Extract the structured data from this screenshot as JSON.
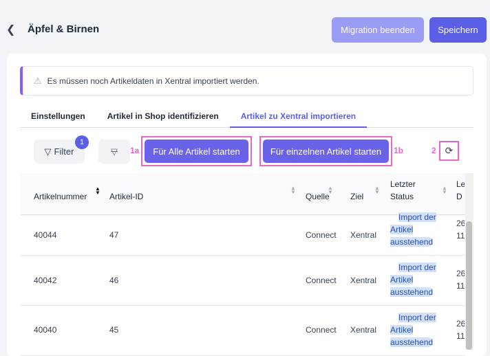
{
  "header": {
    "title": "Äpfel & Birnen",
    "end_migration": "Migration beenden",
    "save": "Speichern"
  },
  "alert": {
    "text": "Es müssen noch Artikeldaten in Xentral importiert werden."
  },
  "tabs": [
    {
      "label": "Einstellungen"
    },
    {
      "label": "Artikel in Shop identifizieren"
    },
    {
      "label": "Artikel zu Xentral importieren",
      "active": true
    }
  ],
  "toolbar": {
    "filter": "Filter",
    "filter_count": "1",
    "mark_1a": "1a",
    "start_all": "Für Alle Artikel starten",
    "start_single": "Für einzelnen Artikel starten",
    "mark_1b": "1b",
    "mark_2": "2"
  },
  "table": {
    "columns": [
      "Artikelnummer",
      "Artikel-ID",
      "Quelle",
      "Ziel",
      "Letzter",
      "Status",
      "Le",
      "D"
    ],
    "rows": [
      {
        "artikelnummer": "40044",
        "artikel_id": "47",
        "quelle": "Connect",
        "ziel": "Xentral",
        "status": "Import der Artikel ausstehend",
        "date1": "26",
        "date2": "11"
      },
      {
        "artikelnummer": "40042",
        "artikel_id": "46",
        "quelle": "Connect",
        "ziel": "Xentral",
        "status": "Import der Artikel ausstehend",
        "date1": "26",
        "date2": "11"
      },
      {
        "artikelnummer": "40040",
        "artikel_id": "45",
        "quelle": "Connect",
        "ziel": "Xentral",
        "status": "Import der Artikel ausstehend",
        "date1": "26",
        "date2": "11"
      }
    ]
  },
  "colors": {
    "accent": "#5b5fe6",
    "button": "#6a63e9",
    "highlight": "#e868c9",
    "status_bg": "#d2e1fb"
  }
}
